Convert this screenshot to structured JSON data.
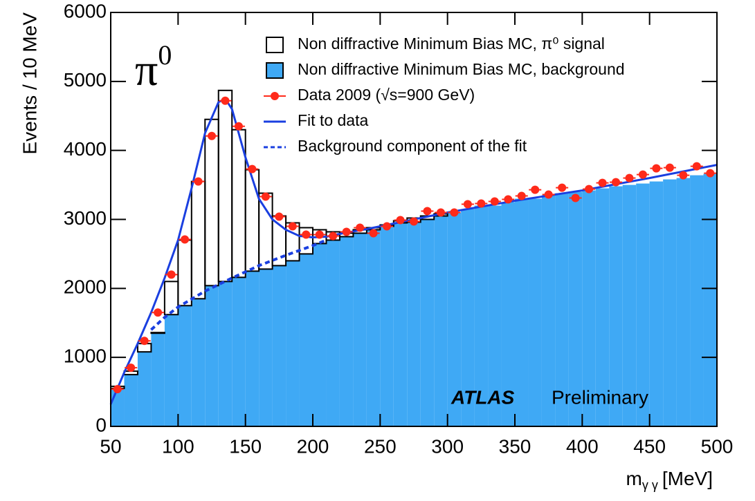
{
  "chart_data": {
    "type": "histogram",
    "annotation": [
      "π",
      "0"
    ],
    "experiment": "ATLAS",
    "status": "Preliminary",
    "ylabel": "Events / 10 MeV",
    "xlabel": [
      "m",
      "γ γ",
      "[MeV]"
    ],
    "xlim": [
      50,
      500
    ],
    "ylim": [
      0,
      6000
    ],
    "xticks": [
      50,
      100,
      150,
      200,
      250,
      300,
      350,
      400,
      450,
      500
    ],
    "yticks": [
      0,
      1000,
      2000,
      3000,
      4000,
      5000,
      6000
    ],
    "legend": "upper right",
    "bins": [
      50,
      60,
      70,
      80,
      90,
      100,
      110,
      120,
      130,
      140,
      150,
      160,
      170,
      180,
      190,
      200,
      210,
      220,
      230,
      240,
      250,
      260,
      270,
      280,
      290,
      300,
      310,
      320,
      330,
      340,
      350,
      360,
      370,
      380,
      390,
      400,
      410,
      420,
      430,
      440,
      450,
      460,
      470,
      480,
      490,
      500
    ],
    "series": [
      {
        "name": "Non diffractive Minimum Bias MC, π⁰ signal",
        "type": "histogram",
        "stacked": true,
        "color": "#000000",
        "values": [
          30,
          50,
          120,
          10,
          480,
          950,
          1700,
          2410,
          2770,
          2140,
          1470,
          1100,
          720,
          550,
          380,
          200,
          120,
          50,
          50,
          30,
          20,
          30,
          60,
          50,
          30,
          0,
          0,
          0,
          0,
          0,
          0,
          0,
          0,
          0,
          0,
          0,
          0,
          0,
          0,
          0,
          0,
          0,
          0,
          0,
          0
        ]
      },
      {
        "name": "Non diffractive Minimum Bias MC, background",
        "type": "histogram",
        "color": "#3fa9f5",
        "values": [
          550,
          750,
          1080,
          1350,
          1620,
          1750,
          1850,
          2040,
          2100,
          2160,
          2250,
          2280,
          2330,
          2400,
          2500,
          2650,
          2700,
          2750,
          2800,
          2850,
          2900,
          2950,
          2960,
          3000,
          3050,
          3100,
          3150,
          3200,
          3200,
          3250,
          3300,
          3300,
          3350,
          3380,
          3400,
          3420,
          3450,
          3480,
          3500,
          3520,
          3550,
          3580,
          3600,
          3640,
          3660
        ]
      },
      {
        "name": "Data 2009 (√s=900 GeV)",
        "type": "scatter",
        "color": "#ff2a1a",
        "x": [
          55,
          65,
          75,
          85,
          95,
          105,
          115,
          125,
          135,
          145,
          155,
          165,
          175,
          185,
          195,
          205,
          215,
          225,
          235,
          245,
          255,
          265,
          275,
          285,
          295,
          305,
          315,
          325,
          335,
          345,
          355,
          365,
          375,
          385,
          395,
          405,
          415,
          425,
          435,
          445,
          455,
          465,
          475,
          485,
          495
        ],
        "values": [
          540,
          850,
          1240,
          1650,
          2200,
          2710,
          3550,
          4210,
          4720,
          4350,
          3730,
          3330,
          3040,
          2900,
          2780,
          2780,
          2760,
          2820,
          2880,
          2800,
          2900,
          2990,
          2970,
          3120,
          3100,
          3100,
          3220,
          3230,
          3260,
          3290,
          3340,
          3430,
          3360,
          3460,
          3310,
          3440,
          3530,
          3540,
          3600,
          3650,
          3740,
          3750,
          3640,
          3770,
          3670
        ]
      },
      {
        "name": "Fit to data",
        "type": "line",
        "color": "#1a3fe0",
        "x": [
          50,
          60,
          70,
          80,
          90,
          100,
          110,
          120,
          130,
          135,
          140,
          150,
          160,
          170,
          180,
          190,
          200,
          210,
          220,
          240,
          260,
          280,
          300,
          350,
          400,
          450,
          500
        ],
        "values": [
          320,
          780,
          1200,
          1650,
          2150,
          2700,
          3450,
          4250,
          4700,
          4750,
          4600,
          3900,
          3300,
          3000,
          2850,
          2760,
          2740,
          2750,
          2790,
          2860,
          2940,
          3020,
          3100,
          3270,
          3420,
          3600,
          3790
        ]
      },
      {
        "name": "Background component of the fit",
        "type": "line",
        "dashed": true,
        "color": "#1a3fe0",
        "x": [
          80,
          90,
          100,
          120,
          140,
          160,
          180,
          200,
          210
        ],
        "values": [
          1400,
          1580,
          1730,
          1960,
          2150,
          2330,
          2480,
          2620,
          2700
        ]
      }
    ]
  }
}
